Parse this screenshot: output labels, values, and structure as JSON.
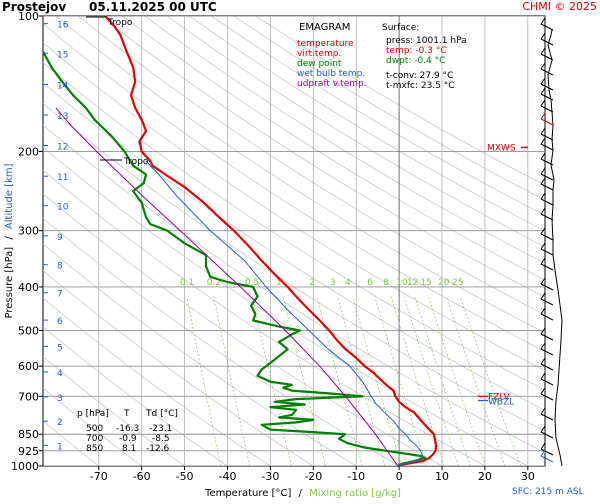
{
  "header": {
    "station": "Prostejov",
    "datetime": "05.11.2025 00 UTC",
    "credit": "CHMI © 2025"
  },
  "legend": {
    "title": "EMAGRAM",
    "items": [
      {
        "label": "temperature",
        "color": "#e00000"
      },
      {
        "label": "virt.temp.",
        "color": "#e00000"
      },
      {
        "label": "dew point",
        "color": "#008000"
      },
      {
        "label": "wet bulb temp.",
        "color": "#2060d0"
      },
      {
        "label": "udpraft v.temp.",
        "color": "#a000a0"
      }
    ]
  },
  "surface": {
    "title": "Surface:",
    "press": "press: 1001.1 hPa",
    "temp": "temp: -0.3 °C",
    "dwpt": "dwpt: -0.4 °C",
    "tconv": "t-conv: 27.9 °C",
    "tmxfc": "t-mxfc: 23.5 °C",
    "temp_color": "#e00000",
    "dwpt_color": "#008000"
  },
  "levels_table": {
    "headers": [
      "p [hPa]",
      "T",
      "Td [°C]"
    ],
    "rows": [
      [
        "500",
        "-16.3",
        "-23.1"
      ],
      [
        "700",
        "-0.9",
        "-8.5"
      ],
      [
        "850",
        "8.1",
        "-12.6"
      ]
    ]
  },
  "annotations": {
    "tropo_top": "Tropo",
    "tropo_mid": "Tropo",
    "mxws": "MXWS",
    "fzlv": "FZLV",
    "wbzl": "WBZL",
    "sfc": "SFC: 215 m ASL"
  },
  "axes": {
    "ylabel_pressure": "Pressure [hPa]",
    "ylabel_sep": "/",
    "ylabel_altitude": "Altitude [km]",
    "xlabel_temp": "Temperature [°C]",
    "xlabel_sep": "/",
    "xlabel_mix": "Mixing ratio [g/kg]"
  },
  "chart_data": {
    "type": "line",
    "title": "EMAGRAM",
    "xlabel": "Temperature [°C]",
    "ylabel": "Pressure [hPa]",
    "xlim": [
      -83,
      34
    ],
    "ylim": [
      1000,
      100
    ],
    "y_scale": "log",
    "x_ticks": [
      -70,
      -60,
      -50,
      -40,
      -30,
      -20,
      -10,
      0,
      10,
      20,
      30
    ],
    "pressure_ticks": [
      100,
      200,
      300,
      400,
      500,
      600,
      700,
      850,
      925,
      1000
    ],
    "altitude_km_ticks": [
      1,
      2,
      3,
      4,
      5,
      6,
      7,
      8,
      9,
      10,
      11,
      12,
      13,
      14,
      15,
      16
    ],
    "altitude_km_pressure": [
      900,
      795,
      702,
      618,
      542,
      474,
      412,
      357,
      308,
      264,
      227,
      194,
      166,
      142,
      121,
      104
    ],
    "mixing_ratio_labels": [
      "0.1",
      "0.2",
      "0.5",
      "1",
      "2",
      "3",
      "4",
      "6",
      "8",
      "10",
      "12",
      "15",
      "20",
      "25"
    ],
    "mixing_ratio_values": [
      0.1,
      0.2,
      0.5,
      1,
      2,
      3,
      4,
      6,
      8,
      10,
      12,
      15,
      20,
      25
    ],
    "mixing_ratio_label_pressure": 400,
    "tropopause_pressures": [
      100,
      210
    ],
    "mxws_pressure": 200,
    "fzlv_pressure": 700,
    "wbzl_pressure": 730,
    "series": [
      {
        "name": "temperature",
        "color": "#e00000",
        "points": [
          [
            1000,
            -0.3
          ],
          [
            990,
            1.5
          ],
          [
            975,
            5.5
          ],
          [
            960,
            7.0
          ],
          [
            940,
            8.0
          ],
          [
            925,
            8.5
          ],
          [
            900,
            8.6
          ],
          [
            880,
            8.4
          ],
          [
            850,
            8.1
          ],
          [
            820,
            6.5
          ],
          [
            800,
            5.5
          ],
          [
            780,
            4.5
          ],
          [
            760,
            3.5
          ],
          [
            740,
            1.5
          ],
          [
            720,
            0.0
          ],
          [
            700,
            -0.9
          ],
          [
            680,
            -1.3
          ],
          [
            660,
            -3.0
          ],
          [
            640,
            -4.5
          ],
          [
            620,
            -6.0
          ],
          [
            600,
            -8.0
          ],
          [
            575,
            -10.0
          ],
          [
            550,
            -12.5
          ],
          [
            525,
            -14.5
          ],
          [
            500,
            -16.3
          ],
          [
            475,
            -18.5
          ],
          [
            450,
            -21.0
          ],
          [
            425,
            -23.5
          ],
          [
            400,
            -26.0
          ],
          [
            375,
            -29.0
          ],
          [
            350,
            -32.0
          ],
          [
            325,
            -35.0
          ],
          [
            300,
            -38.5
          ],
          [
            280,
            -42.0
          ],
          [
            260,
            -45.5
          ],
          [
            240,
            -50.0
          ],
          [
            225,
            -54.5
          ],
          [
            215,
            -57.5
          ],
          [
            210,
            -58.0
          ],
          [
            200,
            -60.0
          ],
          [
            190,
            -60.5
          ],
          [
            180,
            -59.0
          ],
          [
            170,
            -60.0
          ],
          [
            160,
            -61.5
          ],
          [
            150,
            -62.5
          ],
          [
            140,
            -61.5
          ],
          [
            130,
            -62.0
          ],
          [
            120,
            -63.5
          ],
          [
            110,
            -65.0
          ],
          [
            105,
            -66.5
          ],
          [
            100,
            -68.5
          ]
        ]
      },
      {
        "name": "dew point",
        "color": "#008000",
        "points": [
          [
            1000,
            -0.4
          ],
          [
            990,
            0.5
          ],
          [
            975,
            3.5
          ],
          [
            960,
            6.0
          ],
          [
            950,
            5.0
          ],
          [
            940,
            2.0
          ],
          [
            925,
            -3.0
          ],
          [
            910,
            -8.0
          ],
          [
            890,
            -12.0
          ],
          [
            870,
            -14.0
          ],
          [
            850,
            -12.6
          ],
          [
            840,
            -21.0
          ],
          [
            830,
            -30.0
          ],
          [
            810,
            -32.0
          ],
          [
            800,
            -24.0
          ],
          [
            790,
            -20.0
          ],
          [
            780,
            -28.0
          ],
          [
            770,
            -25.0
          ],
          [
            750,
            -24.0
          ],
          [
            740,
            -30.0
          ],
          [
            730,
            -22.0
          ],
          [
            720,
            -29.0
          ],
          [
            710,
            -24.0
          ],
          [
            700,
            -8.5
          ],
          [
            690,
            -16.0
          ],
          [
            680,
            -25.0
          ],
          [
            670,
            -27.0
          ],
          [
            660,
            -25.0
          ],
          [
            650,
            -30.0
          ],
          [
            630,
            -33.0
          ],
          [
            610,
            -32.0
          ],
          [
            590,
            -30.0
          ],
          [
            570,
            -28.0
          ],
          [
            550,
            -26.0
          ],
          [
            530,
            -28.0
          ],
          [
            510,
            -25.0
          ],
          [
            500,
            -23.1
          ],
          [
            490,
            -28.0
          ],
          [
            475,
            -34.0
          ],
          [
            460,
            -33.5
          ],
          [
            440,
            -34.5
          ],
          [
            420,
            -33.0
          ],
          [
            400,
            -34.0
          ],
          [
            390,
            -40.0
          ],
          [
            380,
            -44.0
          ],
          [
            360,
            -45.0
          ],
          [
            340,
            -45.0
          ],
          [
            320,
            -50.0
          ],
          [
            300,
            -54.0
          ],
          [
            290,
            -58.0
          ],
          [
            280,
            -59.0
          ],
          [
            260,
            -60.0
          ],
          [
            245,
            -62.0
          ],
          [
            235,
            -59.5
          ],
          [
            225,
            -59.0
          ],
          [
            215,
            -62.0
          ],
          [
            200,
            -64.0
          ],
          [
            185,
            -67.0
          ],
          [
            170,
            -71.0
          ],
          [
            160,
            -73.0
          ],
          [
            150,
            -76.0
          ],
          [
            140,
            -78.5
          ],
          [
            130,
            -81.0
          ],
          [
            120,
            -83.0
          ]
        ]
      },
      {
        "name": "wet bulb temp.",
        "color": "#2060d0",
        "points": [
          [
            1000,
            -0.3
          ],
          [
            975,
            4.0
          ],
          [
            950,
            5.5
          ],
          [
            925,
            5.0
          ],
          [
            900,
            4.0
          ],
          [
            875,
            2.5
          ],
          [
            850,
            1.5
          ],
          [
            825,
            0.0
          ],
          [
            800,
            -1.0
          ],
          [
            775,
            -2.5
          ],
          [
            750,
            -4.0
          ],
          [
            725,
            -5.5
          ],
          [
            700,
            -6.5
          ],
          [
            650,
            -8.5
          ],
          [
            600,
            -11.5
          ],
          [
            550,
            -16.5
          ],
          [
            500,
            -21.0
          ],
          [
            450,
            -26.0
          ],
          [
            400,
            -31.0
          ],
          [
            350,
            -36.0
          ],
          [
            300,
            -44.0
          ],
          [
            250,
            -52.0
          ],
          [
            225,
            -56.0
          ],
          [
            210,
            -59.0
          ]
        ]
      },
      {
        "name": "udpraft v.temp.",
        "color": "#a000a0",
        "points": [
          [
            1000,
            -0.3
          ],
          [
            850,
            -5.5
          ],
          [
            700,
            -12.5
          ],
          [
            600,
            -18.5
          ],
          [
            500,
            -26.5
          ],
          [
            400,
            -37.0
          ],
          [
            300,
            -51.0
          ],
          [
            250,
            -60.0
          ],
          [
            200,
            -70.5
          ],
          [
            175,
            -76.5
          ],
          [
            160,
            -80.0
          ]
        ]
      }
    ]
  }
}
